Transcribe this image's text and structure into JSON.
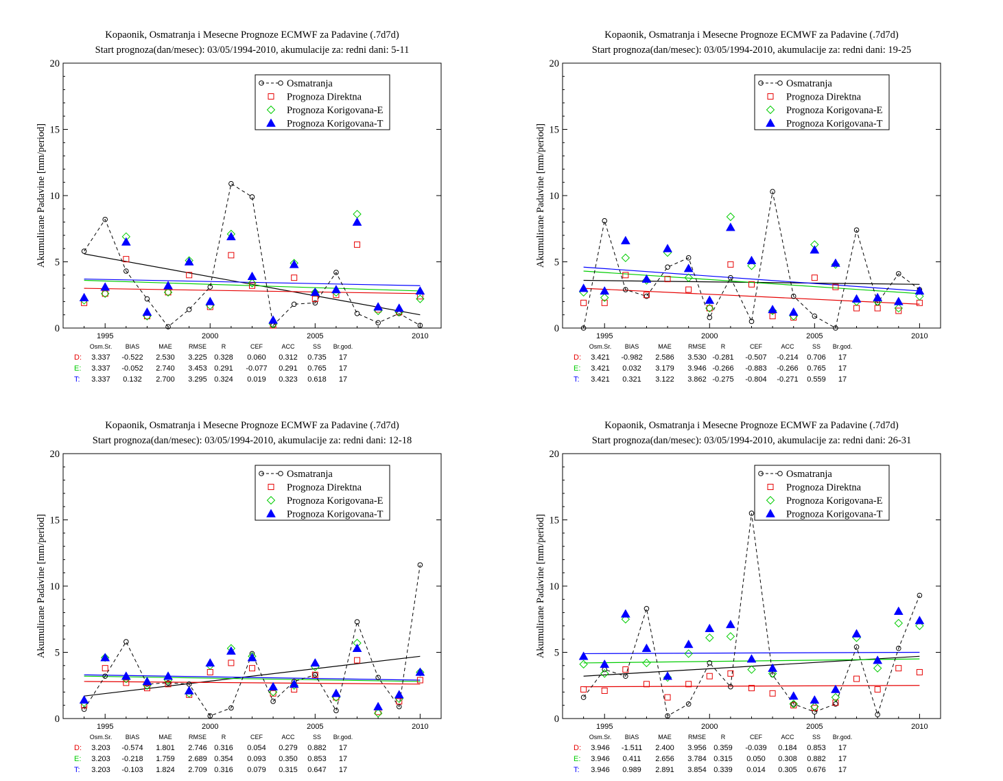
{
  "colors": {
    "obs": "#000000",
    "direct": "#e60000",
    "corrE": "#00cc00",
    "corrT": "#0000ff"
  },
  "legend_labels": [
    "Osmatranja",
    "Prognoza Direktna",
    "Prognoza Korigovana-E",
    "Prognoza Korigovana-T"
  ],
  "stats_headers": [
    "Osm.Sr.",
    "BIAS",
    "MAE",
    "RMSE",
    "R",
    "CEF",
    "ACC",
    "SS",
    "Br.god."
  ],
  "chart_data": [
    {
      "type": "scatter",
      "title": "Kopaonik, Osmatranja i Mesecne Prognoze ECMWF za Padavine (.7d7d)",
      "subtitle": "Start prognoza(dan/mesec): 03/05/1994-2010, akumulacije za: redni dani: 5-11",
      "ylabel": "Akumulirane Padavine [mm/period]",
      "xlim": [
        1993,
        2011
      ],
      "ylim": [
        0,
        20
      ],
      "xticks": [
        1995,
        2000,
        2005,
        2010
      ],
      "yticks": [
        0,
        5,
        10,
        15,
        20
      ],
      "legend_position": "top-right",
      "x": [
        1994,
        1995,
        1996,
        1997,
        1998,
        1999,
        2000,
        2001,
        2002,
        2003,
        2004,
        2005,
        2006,
        2007,
        2008,
        2009,
        2010
      ],
      "series": [
        {
          "name": "Osmatranja",
          "values": [
            5.8,
            8.2,
            4.3,
            2.2,
            0.1,
            1.4,
            3.1,
            10.9,
            9.9,
            0.2,
            1.8,
            1.9,
            4.2,
            1.1,
            0.4,
            1.1,
            0.2
          ],
          "trend": [
            5.6,
            1.0
          ]
        },
        {
          "name": "Prognoza Direktna",
          "values": [
            1.9,
            2.6,
            5.2,
            0.9,
            2.7,
            4.0,
            1.6,
            5.5,
            3.2,
            0.2,
            3.8,
            2.2,
            2.5,
            6.3,
            1.4,
            1.2,
            2.4
          ],
          "trend": [
            3.0,
            2.6
          ]
        },
        {
          "name": "Prognoza Korigovana-E",
          "values": [
            2.1,
            2.6,
            6.9,
            0.9,
            2.7,
            5.1,
            1.7,
            7.1,
            3.4,
            0.3,
            4.9,
            2.7,
            2.7,
            8.6,
            1.3,
            1.2,
            2.2
          ],
          "trend": [
            3.6,
            2.8
          ]
        },
        {
          "name": "Prognoza Korigovana-T",
          "values": [
            2.3,
            3.1,
            6.5,
            1.2,
            3.2,
            5.0,
            2.0,
            6.9,
            3.9,
            0.6,
            4.8,
            2.7,
            2.9,
            8.0,
            1.6,
            1.5,
            2.8
          ],
          "trend": [
            3.7,
            3.2
          ]
        }
      ],
      "stats": [
        {
          "label": "D:",
          "values": [
            "3.337",
            "-0.522",
            "2.530",
            "3.225",
            "0.328",
            "0.060",
            "0.312",
            "0.735",
            "17"
          ]
        },
        {
          "label": "E:",
          "values": [
            "3.337",
            "-0.052",
            "2.740",
            "3.453",
            "0.291",
            "-0.077",
            "0.291",
            "0.765",
            "17"
          ]
        },
        {
          "label": "T:",
          "values": [
            "3.337",
            "0.132",
            "2.700",
            "3.295",
            "0.324",
            "0.019",
            "0.323",
            "0.618",
            "17"
          ]
        }
      ]
    },
    {
      "type": "scatter",
      "title": "Kopaonik, Osmatranja i Mesecne Prognoze ECMWF za Padavine (.7d7d)",
      "subtitle": "Start prognoza(dan/mesec): 03/05/1994-2010, akumulacije za: redni dani: 19-25",
      "ylabel": "Akumulirane Padavine [mm/period]",
      "xlim": [
        1993,
        2011
      ],
      "ylim": [
        0,
        20
      ],
      "xticks": [
        1995,
        2000,
        2005,
        2010
      ],
      "yticks": [
        0,
        5,
        10,
        15,
        20
      ],
      "legend_position": "top-right",
      "x": [
        1994,
        1995,
        1996,
        1997,
        1998,
        1999,
        2000,
        2001,
        2002,
        2003,
        2004,
        2005,
        2006,
        2007,
        2008,
        2009,
        2010
      ],
      "series": [
        {
          "name": "Osmatranja",
          "values": [
            0.0,
            8.1,
            2.9,
            2.4,
            4.6,
            5.3,
            0.8,
            3.8,
            0.5,
            10.3,
            2.4,
            0.9,
            0.0,
            7.4,
            1.9,
            4.1,
            2.9
          ],
          "trend": [
            3.6,
            3.3
          ]
        },
        {
          "name": "Prognoza Direktna",
          "values": [
            1.9,
            1.9,
            4.0,
            2.5,
            3.7,
            2.9,
            1.5,
            4.8,
            3.3,
            0.9,
            0.8,
            3.8,
            3.1,
            1.5,
            1.5,
            1.3,
            1.9
          ],
          "trend": [
            3.0,
            1.8
          ]
        },
        {
          "name": "Prognoza Korigovana-E",
          "values": [
            2.7,
            2.3,
            5.3,
            3.6,
            5.7,
            3.8,
            1.5,
            8.4,
            4.7,
            1.3,
            0.9,
            6.3,
            4.8,
            2.0,
            2.0,
            1.5,
            2.4
          ],
          "trend": [
            4.3,
            2.6
          ]
        },
        {
          "name": "Prognoza Korigovana-T",
          "values": [
            3.0,
            2.8,
            6.6,
            3.7,
            6.0,
            4.5,
            2.1,
            7.6,
            5.1,
            1.4,
            1.2,
            5.9,
            4.9,
            2.2,
            2.3,
            2.0,
            2.8
          ],
          "trend": [
            4.6,
            2.8
          ]
        }
      ],
      "stats": [
        {
          "label": "D:",
          "values": [
            "3.421",
            "-0.982",
            "2.586",
            "3.530",
            "-0.281",
            "-0.507",
            "-0.214",
            "0.706",
            "17"
          ]
        },
        {
          "label": "E:",
          "values": [
            "3.421",
            "0.032",
            "3.179",
            "3.946",
            "-0.266",
            "-0.883",
            "-0.266",
            "0.765",
            "17"
          ]
        },
        {
          "label": "T:",
          "values": [
            "3.421",
            "0.321",
            "3.122",
            "3.862",
            "-0.275",
            "-0.804",
            "-0.271",
            "0.559",
            "17"
          ]
        }
      ]
    },
    {
      "type": "scatter",
      "title": "Kopaonik, Osmatranja i Mesecne Prognoze ECMWF za Padavine (.7d7d)",
      "subtitle": "Start prognoza(dan/mesec): 03/05/1994-2010, akumulacije za: redni dani: 12-18",
      "ylabel": "Akumulirane Padavine [mm/period]",
      "xlim": [
        1993,
        2011
      ],
      "ylim": [
        0,
        20
      ],
      "xticks": [
        1995,
        2000,
        2005,
        2010
      ],
      "yticks": [
        0,
        5,
        10,
        15,
        20
      ],
      "legend_position": "top-right",
      "x": [
        1994,
        1995,
        1996,
        1997,
        1998,
        1999,
        2000,
        2001,
        2002,
        2003,
        2004,
        2005,
        2006,
        2007,
        2008,
        2009,
        2010
      ],
      "series": [
        {
          "name": "Osmatranja",
          "values": [
            0.7,
            3.2,
            5.8,
            2.6,
            2.7,
            2.6,
            0.2,
            0.8,
            4.9,
            1.3,
            2.8,
            3.3,
            0.6,
            7.3,
            3.1,
            0.9,
            11.6
          ],
          "trend": [
            1.7,
            4.7
          ]
        },
        {
          "name": "Prognoza Direktna",
          "values": [
            1.0,
            3.8,
            2.7,
            2.3,
            2.6,
            1.8,
            3.5,
            4.2,
            3.8,
            1.9,
            2.2,
            3.3,
            1.6,
            4.4,
            0.5,
            1.3,
            2.9
          ],
          "trend": [
            2.8,
            2.6
          ]
        },
        {
          "name": "Prognoza Korigovana-E",
          "values": [
            1.2,
            4.6,
            3.0,
            2.5,
            2.9,
            1.9,
            4.0,
            5.3,
            4.7,
            2.0,
            2.5,
            3.9,
            1.6,
            5.7,
            0.4,
            1.5,
            3.5
          ],
          "trend": [
            3.2,
            2.8
          ]
        },
        {
          "name": "Prognoza Korigovana-T",
          "values": [
            1.4,
            4.6,
            3.2,
            2.8,
            3.2,
            2.1,
            4.2,
            5.1,
            4.6,
            2.4,
            2.6,
            4.2,
            1.9,
            5.3,
            0.9,
            1.8,
            3.5
          ],
          "trend": [
            3.3,
            2.9
          ]
        }
      ],
      "stats": [
        {
          "label": "D:",
          "values": [
            "3.203",
            "-0.574",
            "1.801",
            "2.746",
            "0.316",
            "0.054",
            "0.279",
            "0.882",
            "17"
          ]
        },
        {
          "label": "E:",
          "values": [
            "3.203",
            "-0.218",
            "1.759",
            "2.689",
            "0.354",
            "0.093",
            "0.350",
            "0.853",
            "17"
          ]
        },
        {
          "label": "T:",
          "values": [
            "3.203",
            "-0.103",
            "1.824",
            "2.709",
            "0.316",
            "0.079",
            "0.315",
            "0.647",
            "17"
          ]
        }
      ]
    },
    {
      "type": "scatter",
      "title": "Kopaonik, Osmatranja i Mesecne Prognoze ECMWF za Padavine (.7d7d)",
      "subtitle": "Start prognoza(dan/mesec): 03/05/1994-2010, akumulacije za: redni dani: 26-31",
      "ylabel": "Akumulirane Padavine [mm/period]",
      "xlim": [
        1993,
        2011
      ],
      "ylim": [
        0,
        20
      ],
      "xticks": [
        1995,
        2000,
        2005,
        2010
      ],
      "yticks": [
        0,
        5,
        10,
        15,
        20
      ],
      "legend_position": "top-right",
      "x": [
        1994,
        1995,
        1996,
        1997,
        1998,
        1999,
        2000,
        2001,
        2002,
        2003,
        2004,
        2005,
        2006,
        2007,
        2008,
        2009,
        2010
      ],
      "series": [
        {
          "name": "Osmatranja",
          "values": [
            1.6,
            3.7,
            3.2,
            8.3,
            0.2,
            1.1,
            4.2,
            2.4,
            15.5,
            3.3,
            1.1,
            0.5,
            1.1,
            5.4,
            0.3,
            5.3,
            9.3
          ],
          "trend": [
            3.2,
            4.7
          ]
        },
        {
          "name": "Prognoza Direktna",
          "values": [
            2.2,
            2.1,
            3.7,
            2.6,
            1.6,
            2.6,
            3.2,
            3.4,
            2.3,
            1.9,
            1.0,
            0.8,
            1.2,
            3.0,
            2.2,
            3.8,
            3.5
          ],
          "trend": [
            2.4,
            2.5
          ]
        },
        {
          "name": "Prognoza Korigovana-E",
          "values": [
            4.1,
            3.4,
            7.5,
            4.2,
            3.1,
            4.9,
            6.1,
            6.2,
            3.7,
            3.4,
            1.1,
            0.9,
            1.6,
            6.1,
            3.8,
            7.2,
            7.0
          ],
          "trend": [
            4.2,
            4.5
          ]
        },
        {
          "name": "Prognoza Korigovana-T",
          "values": [
            4.7,
            4.1,
            7.9,
            5.3,
            3.2,
            5.6,
            6.8,
            7.1,
            4.5,
            3.8,
            1.7,
            1.4,
            2.2,
            6.4,
            4.4,
            8.1,
            7.4
          ],
          "trend": [
            4.9,
            5.0
          ]
        }
      ],
      "stats": [
        {
          "label": "D:",
          "values": [
            "3.946",
            "-1.511",
            "2.400",
            "3.956",
            "0.359",
            "-0.039",
            "0.184",
            "0.853",
            "17"
          ]
        },
        {
          "label": "E:",
          "values": [
            "3.946",
            "0.411",
            "2.656",
            "3.784",
            "0.315",
            "0.050",
            "0.308",
            "0.882",
            "17"
          ]
        },
        {
          "label": "T:",
          "values": [
            "3.946",
            "0.989",
            "2.891",
            "3.854",
            "0.339",
            "0.014",
            "0.305",
            "0.676",
            "17"
          ]
        }
      ]
    }
  ]
}
